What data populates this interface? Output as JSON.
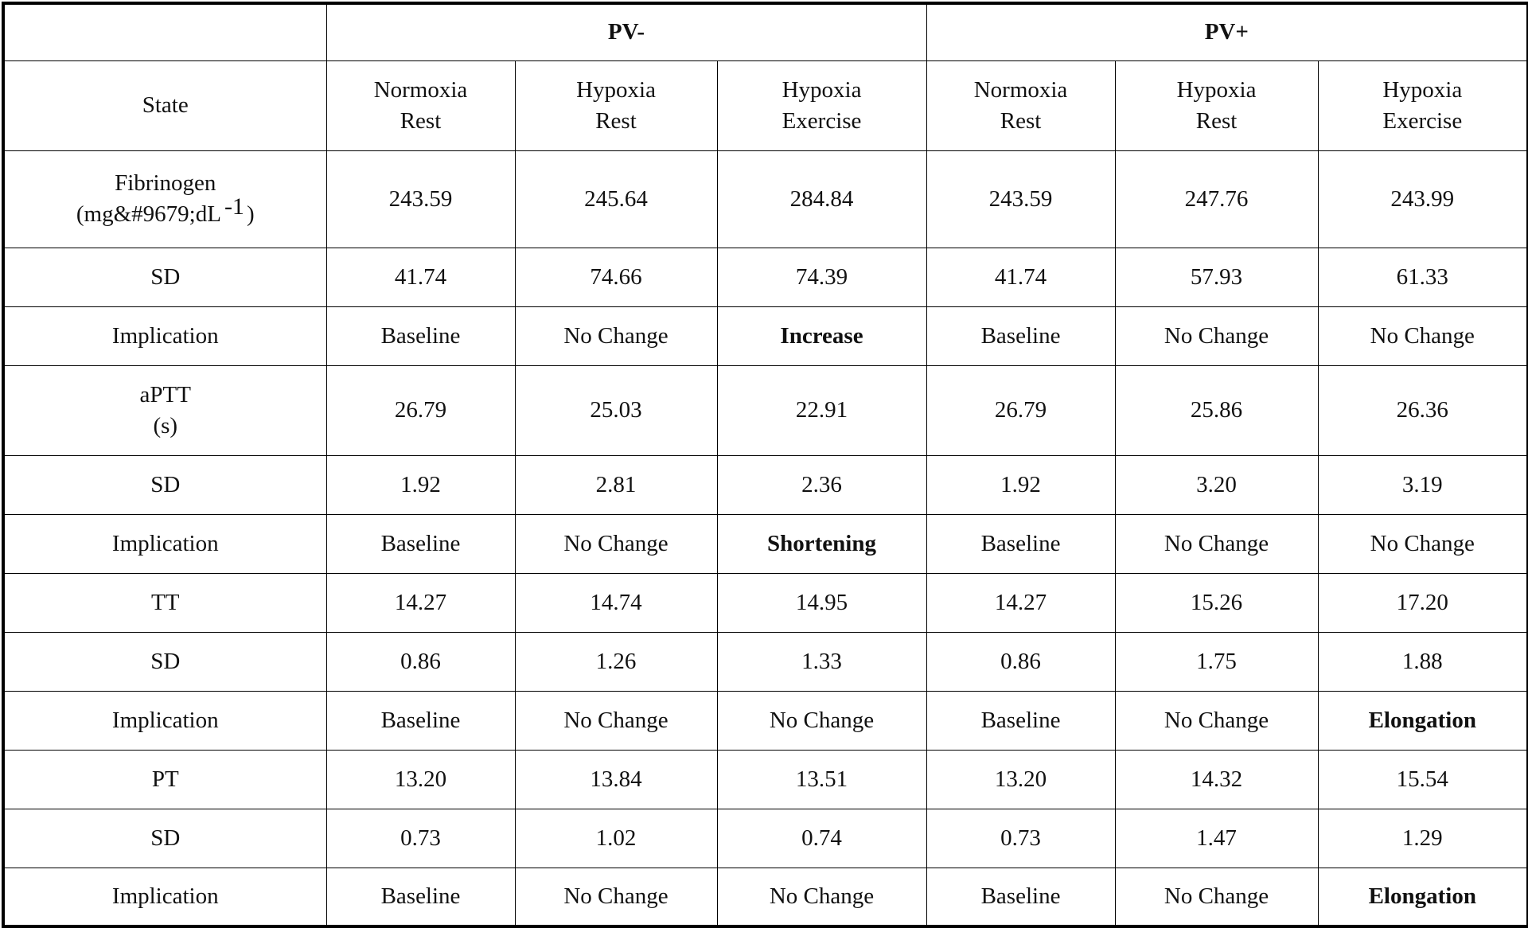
{
  "header": {
    "group_pv_minus": "PV-",
    "group_pv_plus": "PV+",
    "state_label": "State",
    "columns": [
      {
        "line1": "Normoxia",
        "line2": "Rest"
      },
      {
        "line1": "Hypoxia",
        "line2": "Rest"
      },
      {
        "line1": "Hypoxia",
        "line2": "Exercise"
      },
      {
        "line1": "Normoxia",
        "line2": "Rest"
      },
      {
        "line1": "Hypoxia",
        "line2": "Rest"
      },
      {
        "line1": "Hypoxia",
        "line2": "Exercise"
      }
    ]
  },
  "rows": [
    {
      "label_line1": "Fibrinogen",
      "label_line2": "(mg&#9679;dL",
      "label_sup": "-1",
      "label_after": ")",
      "values": [
        "243.59",
        "245.64",
        "284.84",
        "243.59",
        "247.76",
        "243.99"
      ]
    },
    {
      "label_line1": "SD",
      "values": [
        "41.74",
        "74.66",
        "74.39",
        "41.74",
        "57.93",
        "61.33"
      ]
    },
    {
      "label_line1": "Implication",
      "values": [
        "Baseline",
        "No Change",
        "Increase",
        "Baseline",
        "No Change",
        "No Change"
      ],
      "bold_index": [
        2
      ]
    },
    {
      "label_line1": "aPTT",
      "label_line2": "(s)",
      "values": [
        "26.79",
        "25.03",
        "22.91",
        "26.79",
        "25.86",
        "26.36"
      ]
    },
    {
      "label_line1": "SD",
      "values": [
        "1.92",
        "2.81",
        "2.36",
        "1.92",
        "3.20",
        "3.19"
      ]
    },
    {
      "label_line1": "Implication",
      "values": [
        "Baseline",
        "No Change",
        "Shortening",
        "Baseline",
        "No Change",
        "No Change"
      ],
      "bold_index": [
        2
      ]
    },
    {
      "label_line1": "TT",
      "values": [
        "14.27",
        "14.74",
        "14.95",
        "14.27",
        "15.26",
        "17.20"
      ]
    },
    {
      "label_line1": "SD",
      "values": [
        "0.86",
        "1.26",
        "1.33",
        "0.86",
        "1.75",
        "1.88"
      ]
    },
    {
      "label_line1": "Implication",
      "values": [
        "Baseline",
        "No Change",
        "No Change",
        "Baseline",
        "No Change",
        "Elongation"
      ],
      "bold_index": [
        5
      ]
    },
    {
      "label_line1": "PT",
      "values": [
        "13.20",
        "13.84",
        "13.51",
        "13.20",
        "14.32",
        "15.54"
      ]
    },
    {
      "label_line1": "SD",
      "values": [
        "0.73",
        "1.02",
        "0.74",
        "0.73",
        "1.47",
        "1.29"
      ]
    },
    {
      "label_line1": "Implication",
      "values": [
        "Baseline",
        "No Change",
        "No Change",
        "Baseline",
        "No Change",
        "Elongation"
      ],
      "bold_index": [
        5
      ]
    }
  ]
}
